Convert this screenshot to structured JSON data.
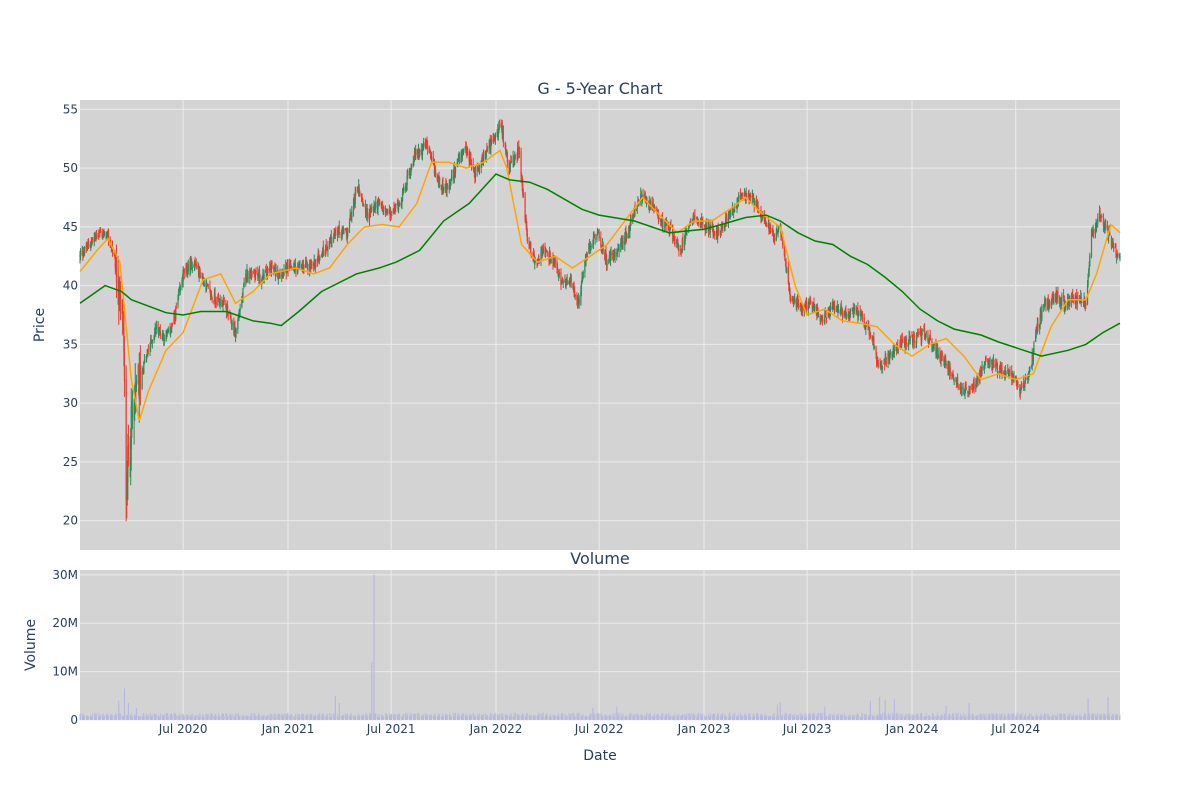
{
  "chart_data": [
    {
      "type": "candlestick",
      "title": "G - 5-Year Chart",
      "xlabel": "",
      "ylabel": "Price",
      "ylim": [
        17.5,
        55.8
      ],
      "yticks": [
        20,
        25,
        30,
        35,
        40,
        45,
        50,
        55
      ],
      "xlim": [
        "2020-01-02",
        "2024-12-31"
      ],
      "xticks": [
        {
          "date": "2020-07-01",
          "label": "Jul 2020"
        },
        {
          "date": "2021-01-01",
          "label": "Jan 2021"
        },
        {
          "date": "2021-07-01",
          "label": "Jul 2021"
        },
        {
          "date": "2022-01-01",
          "label": "Jan 2022"
        },
        {
          "date": "2022-07-01",
          "label": "Jul 2022"
        },
        {
          "date": "2023-01-01",
          "label": "Jan 2023"
        },
        {
          "date": "2023-07-01",
          "label": "Jul 2023"
        },
        {
          "date": "2024-01-01",
          "label": "Jan 2024"
        },
        {
          "date": "2024-07-01",
          "label": "Jul 2024"
        }
      ],
      "grid": true,
      "legend": false,
      "price_close_series": {
        "dates": [
          "2020-01-02",
          "2020-02-03",
          "2020-02-20",
          "2020-03-02",
          "2020-03-10",
          "2020-03-18",
          "2020-03-23",
          "2020-04-01",
          "2020-04-15",
          "2020-05-01",
          "2020-05-15",
          "2020-06-01",
          "2020-06-15",
          "2020-07-01",
          "2020-07-20",
          "2020-08-05",
          "2020-08-20",
          "2020-09-10",
          "2020-10-01",
          "2020-10-20",
          "2020-11-02",
          "2020-11-16",
          "2020-12-01",
          "2020-12-15",
          "2021-01-04",
          "2021-01-25",
          "2021-02-15",
          "2021-03-05",
          "2021-03-25",
          "2021-04-15",
          "2021-05-03",
          "2021-05-20",
          "2021-06-07",
          "2021-06-15",
          "2021-07-01",
          "2021-07-20",
          "2021-08-10",
          "2021-09-01",
          "2021-09-20",
          "2021-10-08",
          "2021-10-25",
          "2021-11-10",
          "2021-11-25",
          "2021-12-10",
          "2021-12-28",
          "2022-01-10",
          "2022-01-25",
          "2022-02-10",
          "2022-02-25",
          "2022-03-10",
          "2022-03-25",
          "2022-04-12",
          "2022-04-28",
          "2022-05-12",
          "2022-05-26",
          "2022-06-10",
          "2022-06-28",
          "2022-07-15",
          "2022-08-01",
          "2022-08-20",
          "2022-09-10",
          "2022-09-28",
          "2022-10-15",
          "2022-11-01",
          "2022-11-20",
          "2022-12-10",
          "2023-01-05",
          "2023-01-25",
          "2023-02-15",
          "2023-03-05",
          "2023-03-25",
          "2023-04-15",
          "2023-05-05",
          "2023-05-15",
          "2023-06-01",
          "2023-06-20",
          "2023-07-10",
          "2023-07-28",
          "2023-08-15",
          "2023-09-05",
          "2023-09-25",
          "2023-10-10",
          "2023-10-25",
          "2023-11-01",
          "2023-11-20",
          "2023-12-10",
          "2024-01-05",
          "2024-01-25",
          "2024-02-10",
          "2024-02-28",
          "2024-03-15",
          "2024-04-01",
          "2024-04-20",
          "2024-05-10",
          "2024-05-28",
          "2024-06-15",
          "2024-07-01",
          "2024-07-10",
          "2024-07-28",
          "2024-08-05",
          "2024-08-20",
          "2024-09-10",
          "2024-09-28",
          "2024-10-15",
          "2024-10-28",
          "2024-11-01",
          "2024-11-12",
          "2024-11-25",
          "2024-12-10",
          "2024-12-20",
          "2024-12-31"
        ],
        "close": [
          42.5,
          44.5,
          44.2,
          42.5,
          39.5,
          36,
          23,
          28,
          32,
          34.5,
          36.5,
          35.5,
          37,
          41,
          42,
          40.5,
          39,
          38.5,
          36,
          41,
          41.2,
          40.5,
          41.5,
          41,
          41.5,
          41.5,
          41.8,
          43,
          44.5,
          44.5,
          48.5,
          46,
          47,
          46.5,
          46,
          47.5,
          51,
          52,
          49,
          48,
          50.5,
          51.5,
          49.5,
          51,
          52.5,
          53.5,
          50,
          51.5,
          44,
          42,
          43,
          42,
          40,
          40.5,
          38.5,
          43,
          44.5,
          42,
          43,
          44.5,
          47.5,
          47,
          45.5,
          45,
          43,
          46,
          45,
          44.5,
          46,
          47.5,
          47.5,
          46,
          44,
          45,
          39,
          38,
          38.5,
          37,
          38.2,
          37.5,
          37.8,
          36.8,
          35.2,
          33,
          34,
          35,
          35.5,
          36,
          34.5,
          33.5,
          32,
          31,
          31.5,
          34,
          33,
          32.5,
          32,
          31,
          33,
          36,
          38.5,
          39,
          38.5,
          39,
          38.7,
          38.5,
          44.5,
          46,
          44.5,
          43,
          42.5
        ],
        "up_color": "#2e8b57",
        "down_color": "#ef3b2c"
      },
      "series": [
        {
          "name": "",
          "color": "#ffa500",
          "x": [
            "2020-01-02",
            "2020-02-01",
            "2020-02-20",
            "2020-03-12",
            "2020-04-01",
            "2020-04-15",
            "2020-05-01",
            "2020-06-01",
            "2020-07-01",
            "2020-08-05",
            "2020-09-05",
            "2020-10-01",
            "2020-11-01",
            "2020-12-01",
            "2021-01-15",
            "2021-02-15",
            "2021-03-15",
            "2021-04-15",
            "2021-05-15",
            "2021-06-15",
            "2021-07-15",
            "2021-08-15",
            "2021-09-10",
            "2021-10-10",
            "2021-11-10",
            "2021-12-10",
            "2022-01-08",
            "2022-01-20",
            "2022-02-15",
            "2022-03-15",
            "2022-04-15",
            "2022-05-15",
            "2022-06-15",
            "2022-07-15",
            "2022-08-15",
            "2022-09-15",
            "2022-10-15",
            "2022-11-15",
            "2022-12-15",
            "2023-01-15",
            "2023-02-15",
            "2023-03-15",
            "2023-04-15",
            "2023-05-15",
            "2023-06-10",
            "2023-07-01",
            "2023-08-01",
            "2023-09-01",
            "2023-10-01",
            "2023-11-01",
            "2023-12-01",
            "2024-01-01",
            "2024-02-01",
            "2024-03-01",
            "2024-04-01",
            "2024-05-01",
            "2024-06-01",
            "2024-07-01",
            "2024-08-01",
            "2024-09-01",
            "2024-10-01",
            "2024-11-01",
            "2024-11-20",
            "2024-12-15",
            "2024-12-31"
          ],
          "y": [
            41.2,
            43,
            44,
            42,
            32,
            28.5,
            31,
            34.5,
            36,
            40.5,
            41,
            38.5,
            39.5,
            41,
            41.5,
            41,
            41.5,
            43.5,
            45,
            45.2,
            45,
            47,
            50.5,
            50.5,
            50,
            50.5,
            51.5,
            50,
            43.5,
            42,
            42.5,
            41.5,
            42.5,
            43.5,
            45.5,
            47.5,
            46,
            44.5,
            45.5,
            45.5,
            46.5,
            47.5,
            46,
            45,
            40,
            37.5,
            38,
            37,
            36.8,
            36.5,
            35,
            34,
            35,
            35.5,
            34,
            32,
            32.5,
            32,
            32.5,
            36.5,
            38.8,
            38.8,
            41,
            45.2,
            44.5
          ]
        },
        {
          "name": "",
          "color": "#008000",
          "x": [
            "2020-01-02",
            "2020-02-15",
            "2020-03-15",
            "2020-04-01",
            "2020-06-01",
            "2020-07-01",
            "2020-08-01",
            "2020-09-15",
            "2020-11-01",
            "2020-12-01",
            "2020-12-20",
            "2021-01-20",
            "2021-03-01",
            "2021-05-01",
            "2021-06-10",
            "2021-07-10",
            "2021-08-20",
            "2021-10-01",
            "2021-11-15",
            "2022-01-01",
            "2022-01-25",
            "2022-03-01",
            "2022-04-01",
            "2022-06-01",
            "2022-07-01",
            "2022-09-01",
            "2022-11-01",
            "2023-01-01",
            "2023-02-01",
            "2023-03-15",
            "2023-04-20",
            "2023-05-15",
            "2023-06-15",
            "2023-07-15",
            "2023-08-15",
            "2023-09-15",
            "2023-10-15",
            "2023-11-15",
            "2023-12-15",
            "2024-01-15",
            "2024-02-15",
            "2024-03-15",
            "2024-05-01",
            "2024-06-01",
            "2024-07-15",
            "2024-08-15",
            "2024-10-01",
            "2024-11-01",
            "2024-12-01",
            "2024-12-31"
          ],
          "y": [
            38.5,
            40,
            39.5,
            38.8,
            37.7,
            37.5,
            37.8,
            37.8,
            37,
            36.8,
            36.6,
            37.8,
            39.5,
            41,
            41.5,
            42,
            43,
            45.5,
            47,
            49.5,
            49,
            48.8,
            48.2,
            46.5,
            46,
            45.5,
            44.5,
            44.8,
            45.2,
            45.8,
            46,
            45.5,
            44.5,
            43.8,
            43.5,
            42.5,
            41.8,
            40.7,
            39.5,
            38,
            37,
            36.3,
            35.8,
            35.2,
            34.5,
            34,
            34.5,
            35,
            36,
            36.8
          ]
        }
      ]
    },
    {
      "type": "bar",
      "title": "Volume",
      "xlabel": "Date",
      "ylabel": "Volume",
      "ylim": [
        0,
        31000000
      ],
      "yticks": [
        {
          "value": 0,
          "label": "0"
        },
        {
          "value": 10000000,
          "label": "10M"
        },
        {
          "value": 20000000,
          "label": "20M"
        },
        {
          "value": 30000000,
          "label": "30M"
        }
      ],
      "bar_color": "#b8b8e0",
      "spikes": [
        {
          "x": "2020-03-10",
          "y": 4000000
        },
        {
          "x": "2020-03-20",
          "y": 6500000
        },
        {
          "x": "2020-03-27",
          "y": 3500000
        },
        {
          "x": "2020-04-10",
          "y": 2500000
        },
        {
          "x": "2021-03-25",
          "y": 5000000
        },
        {
          "x": "2021-04-01",
          "y": 3500000
        },
        {
          "x": "2021-05-28",
          "y": 12000000
        },
        {
          "x": "2021-06-01",
          "y": 30000000
        },
        {
          "x": "2022-06-20",
          "y": 2500000
        },
        {
          "x": "2022-08-01",
          "y": 2800000
        },
        {
          "x": "2023-05-10",
          "y": 3200000
        },
        {
          "x": "2023-05-15",
          "y": 3600000
        },
        {
          "x": "2023-08-01",
          "y": 2800000
        },
        {
          "x": "2023-10-20",
          "y": 4000000
        },
        {
          "x": "2023-11-05",
          "y": 4800000
        },
        {
          "x": "2023-11-15",
          "y": 4200000
        },
        {
          "x": "2023-12-01",
          "y": 4300000
        },
        {
          "x": "2024-03-01",
          "y": 3000000
        },
        {
          "x": "2024-04-10",
          "y": 3500000
        },
        {
          "x": "2024-11-05",
          "y": 4500000
        },
        {
          "x": "2024-12-10",
          "y": 4800000
        }
      ]
    }
  ],
  "colors": {
    "plot_bg": "#d3d3d3",
    "grid": "#ebebeb",
    "text": "#2a3f5f"
  }
}
